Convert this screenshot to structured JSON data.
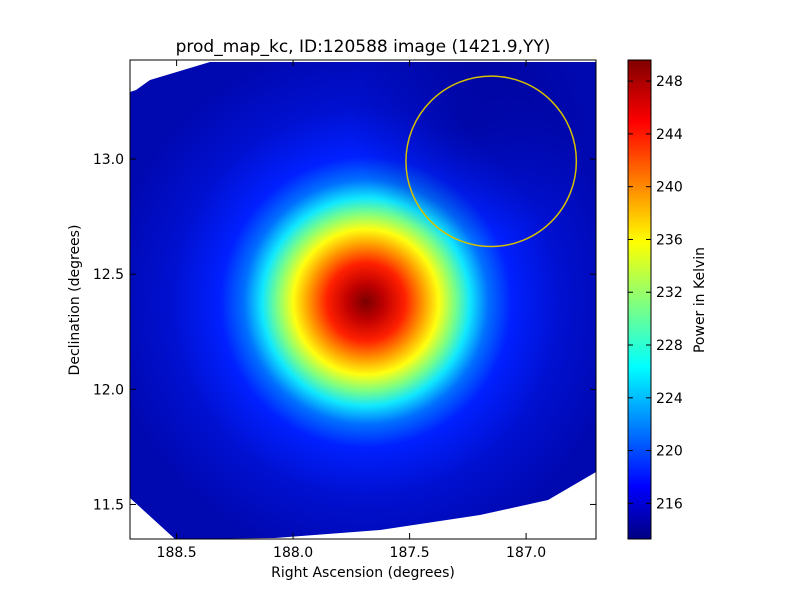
{
  "chart_data": {
    "type": "heatmap",
    "title": "prod_map_kc, ID:120588 image (1421.9,YY)",
    "xlabel": "Right Ascension (degrees)",
    "ylabel": "Declination (degrees)",
    "xlim": [
      188.7,
      186.7
    ],
    "ylim": [
      11.35,
      13.43
    ],
    "x_ticks": [
      188.5,
      188.0,
      187.5,
      187.0
    ],
    "x_tick_labels": [
      "188.5",
      "188.0",
      "187.5",
      "187.0"
    ],
    "y_ticks": [
      11.5,
      12.0,
      12.5,
      13.0
    ],
    "y_tick_labels": [
      "11.5",
      "12.0",
      "12.5",
      "13.0"
    ],
    "colorbar": {
      "label": "Power in Kelvin",
      "colormap": "jet",
      "range": [
        213.3,
        249.6
      ],
      "ticks": [
        216,
        220,
        224,
        228,
        232,
        236,
        240,
        244,
        248
      ],
      "tick_labels": [
        "216",
        "220",
        "224",
        "228",
        "232",
        "236",
        "240",
        "244",
        "248"
      ]
    },
    "peak": {
      "ra": 187.66,
      "dec": 12.38,
      "value": 249.5
    },
    "background_level": 216,
    "annotation_circle": {
      "ra": 187.15,
      "dec": 12.99,
      "radius_deg": 0.37,
      "color": "#d4c000"
    },
    "colors": {
      "circle": "#d4c000",
      "frame": "#000000",
      "masked": "#ffffff"
    }
  }
}
